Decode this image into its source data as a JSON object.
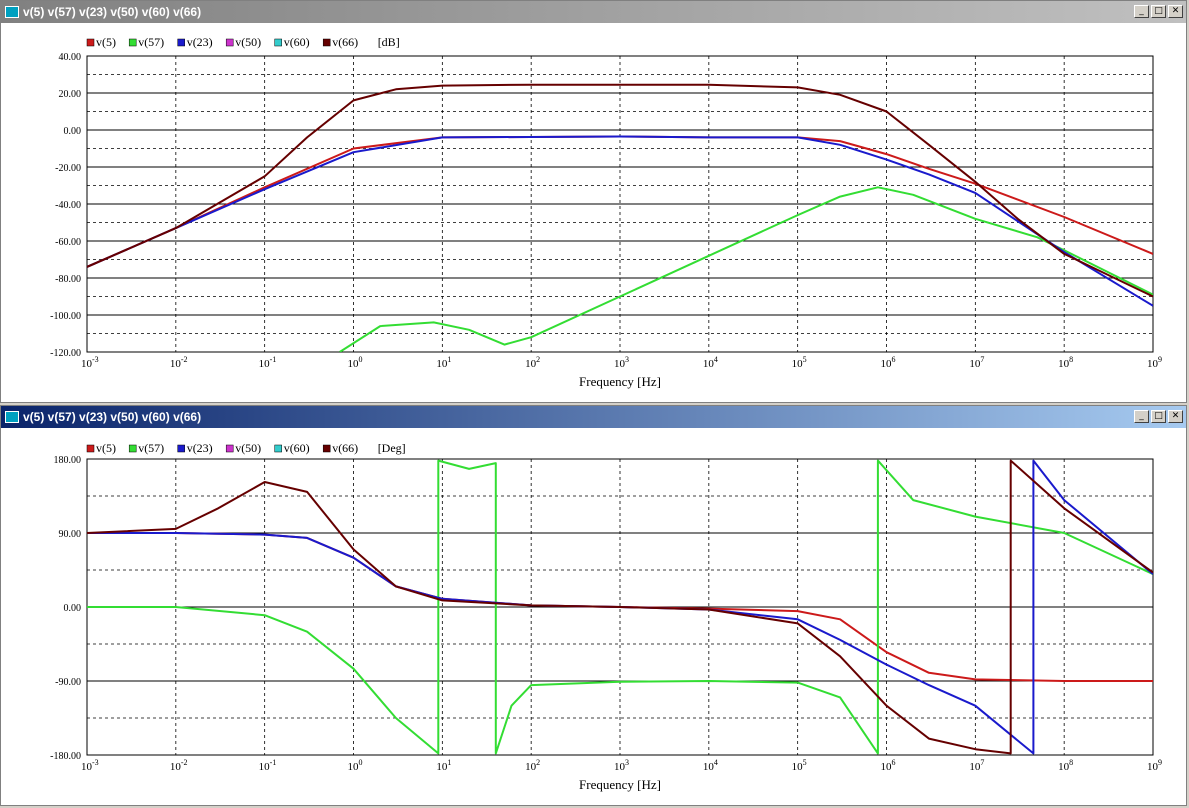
{
  "windows": [
    {
      "title": "v(5) v(57) v(23) v(50) v(60) v(66)",
      "active": false,
      "buttons": {
        "minimize": "_",
        "maximize": "□",
        "close": "✕"
      }
    },
    {
      "title": "v(5) v(57) v(23) v(50) v(60) v(66)",
      "active": true,
      "buttons": {
        "minimize": "_",
        "maximize": "□",
        "close": "✕"
      }
    }
  ],
  "colors": {
    "v(5)": "#cc1a1a",
    "v(57)": "#33dd33",
    "v(23)": "#1a1acc",
    "v(50)": "#cc33cc",
    "v(60)": "#33cccc",
    "v(66)": "#660000"
  },
  "chart_data": [
    {
      "type": "line",
      "ylabel": "[dB]",
      "xlabel": "Frequency [Hz]",
      "xscale": "log",
      "xlim": [
        0.001,
        1000000000
      ],
      "x_tick_labels": [
        "10-3",
        "10-2",
        "10-1",
        "100",
        "101",
        "102",
        "103",
        "104",
        "105",
        "106",
        "107",
        "108",
        "109"
      ],
      "ylim": [
        -120,
        40
      ],
      "y_tick_labels": [
        "40.00",
        "20.00",
        "0.00",
        "-20.00",
        "-40.00",
        "-60.00",
        "-80.00",
        "-100.00",
        "-120.00"
      ],
      "grid": true,
      "legend": [
        "v(5)",
        "v(57)",
        "v(23)",
        "v(50)",
        "v(60)",
        "v(66)"
      ],
      "series": [
        {
          "name": "v(5)",
          "x": [
            0.001,
            0.01,
            0.1,
            1,
            10,
            1000,
            10000,
            100000,
            300000,
            1000000,
            3000000,
            10000000,
            100000000,
            1000000000
          ],
          "y": [
            -74,
            -53,
            -31,
            -10,
            -4,
            -3.5,
            -4,
            -4,
            -6,
            -13,
            -21,
            -29,
            -47,
            -67
          ]
        },
        {
          "name": "v(57)",
          "x": [
            0.7,
            2,
            8,
            20,
            50,
            100,
            1000,
            10000,
            100000,
            300000,
            800000,
            2000000,
            10000000,
            50000000,
            100000000,
            1000000000
          ],
          "y": [
            -120,
            -106,
            -104,
            -108,
            -116,
            -112,
            -90,
            -68,
            -46,
            -36,
            -31,
            -35,
            -48,
            -58,
            -65,
            -89
          ]
        },
        {
          "name": "v(23)",
          "x": [
            0.001,
            0.01,
            0.1,
            1,
            10,
            1000,
            10000,
            100000,
            300000,
            1000000,
            3000000,
            10000000,
            100000000,
            1000000000
          ],
          "y": [
            -74,
            -53,
            -32,
            -12,
            -4,
            -3.5,
            -4,
            -4,
            -8,
            -16,
            -24,
            -34,
            -66,
            -95
          ]
        },
        {
          "name": "v(66)",
          "x": [
            0.001,
            0.01,
            0.1,
            0.3,
            1,
            3,
            10,
            100,
            1000,
            10000,
            100000,
            300000,
            1000000,
            3000000,
            10000000,
            30000000,
            100000000,
            1000000000
          ],
          "y": [
            -74,
            -53,
            -25,
            -4,
            16,
            22,
            24,
            24.5,
            24.5,
            24.5,
            23,
            19,
            10,
            -8,
            -28,
            -48,
            -67,
            -90
          ]
        }
      ]
    },
    {
      "type": "line",
      "ylabel": "[Deg]",
      "xlabel": "Frequency [Hz]",
      "xscale": "log",
      "xlim": [
        0.001,
        1000000000
      ],
      "x_tick_labels": [
        "10-3",
        "10-2",
        "10-1",
        "100",
        "101",
        "102",
        "103",
        "104",
        "105",
        "106",
        "107",
        "108",
        "109"
      ],
      "ylim": [
        -180,
        180
      ],
      "y_tick_labels": [
        "180.00",
        "90.00",
        "0.00",
        "-90.00",
        "-180.00"
      ],
      "grid": true,
      "legend": [
        "v(5)",
        "v(57)",
        "v(23)",
        "v(50)",
        "v(60)",
        "v(66)"
      ],
      "series": [
        {
          "name": "v(5)",
          "x": [
            0.001,
            0.01,
            0.1,
            0.3,
            1,
            3,
            10,
            100,
            1000,
            10000,
            100000,
            300000,
            1000000,
            3000000,
            10000000,
            100000000,
            1000000000
          ],
          "y": [
            90,
            90,
            88,
            84,
            60,
            25,
            10,
            2,
            0,
            -2,
            -5,
            -15,
            -55,
            -80,
            -88,
            -90,
            -90
          ]
        },
        {
          "name": "v(57)",
          "x": [
            0.001,
            0.01,
            0.1,
            0.3,
            1,
            3,
            9,
            9,
            20,
            40,
            40,
            60,
            100,
            1000,
            10000,
            100000,
            300000,
            800000,
            800000,
            2000000,
            10000000,
            100000000,
            1000000000
          ],
          "y": [
            0,
            0,
            -10,
            -30,
            -75,
            -135,
            -178,
            178,
            168,
            175,
            -178,
            -120,
            -95,
            -91,
            -90,
            -92,
            -110,
            -178,
            178,
            130,
            110,
            90,
            40
          ]
        },
        {
          "name": "v(23)",
          "x": [
            0.001,
            0.01,
            0.1,
            0.3,
            1,
            3,
            10,
            100,
            1000,
            10000,
            100000,
            300000,
            1000000,
            3000000,
            10000000,
            45000000,
            45000000,
            100000000,
            1000000000
          ],
          "y": [
            90,
            90,
            88,
            84,
            60,
            25,
            10,
            2,
            0,
            -3,
            -15,
            -40,
            -70,
            -95,
            -120,
            -178,
            178,
            130,
            40
          ]
        },
        {
          "name": "v(66)",
          "x": [
            0.001,
            0.01,
            0.03,
            0.1,
            0.3,
            1,
            3,
            10,
            100,
            1000,
            10000,
            100000,
            300000,
            1000000,
            3000000,
            10000000,
            25000000,
            25000000,
            100000000,
            1000000000
          ],
          "y": [
            90,
            95,
            120,
            152,
            140,
            70,
            25,
            8,
            2,
            0,
            -3,
            -20,
            -60,
            -120,
            -160,
            -173,
            -178,
            178,
            120,
            42
          ]
        }
      ]
    }
  ]
}
